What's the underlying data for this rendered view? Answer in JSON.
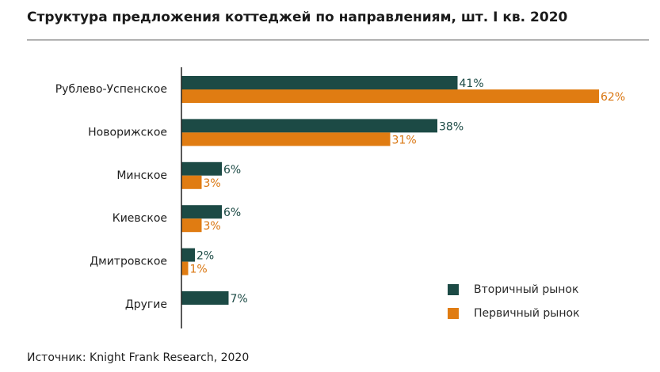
{
  "title": "Структура предложения коттеджей по направлениям, шт. I кв. 2020",
  "source": "Источник: Knight Frank Research, 2020",
  "colors": {
    "secondary": "#1c4a45",
    "primary": "#e07c12",
    "axis": "#222222"
  },
  "chart_data": {
    "type": "bar",
    "orientation": "horizontal",
    "title": "Структура предложения коттеджей по направлениям, шт. I кв. 2020",
    "categories": [
      "Рублево-Успенское",
      "Новорижское",
      "Минское",
      "Киевское",
      "Дмитровское",
      "Другие"
    ],
    "series": [
      {
        "name": "Вторичный рынок",
        "values": [
          41,
          38,
          6,
          6,
          2,
          7
        ],
        "labels": [
          "41%",
          "38%",
          "6%",
          "6%",
          "2%",
          "7%"
        ]
      },
      {
        "name": "Первичный рынок",
        "values": [
          62,
          31,
          3,
          3,
          1,
          null
        ],
        "labels": [
          "62%",
          "31%",
          "3%",
          "3%",
          "1%",
          ""
        ]
      }
    ],
    "value_unit": "%",
    "xlim": [
      0,
      62
    ],
    "legend_position": "bottom-right",
    "grid": false
  }
}
